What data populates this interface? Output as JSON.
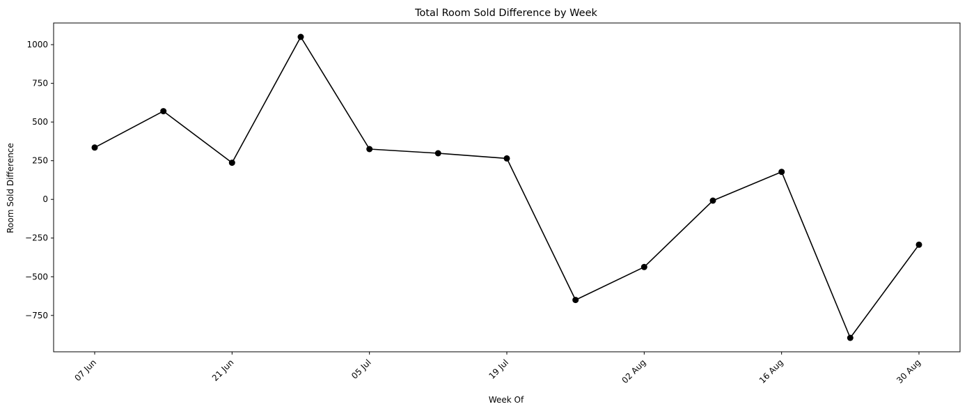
{
  "chart_data": {
    "type": "line",
    "title": "Total Room Sold Difference by Week",
    "xlabel": "Week Of",
    "ylabel": "Room Sold Difference",
    "x": [
      "2021-06-07",
      "2021-06-14",
      "2021-06-21",
      "2021-06-28",
      "2021-07-05",
      "2021-07-12",
      "2021-07-19",
      "2021-07-26",
      "2021-08-02",
      "2021-08-09",
      "2021-08-16",
      "2021-08-23",
      "2021-08-30"
    ],
    "x_tick_labels": [
      "07 Jun",
      "21 Jun",
      "05 Jul",
      "19 Jul",
      "02 Aug",
      "16 Aug",
      "30 Aug"
    ],
    "x_tick_dates": [
      "2021-06-07",
      "2021-06-21",
      "2021-07-05",
      "2021-07-19",
      "2021-08-02",
      "2021-08-16",
      "2021-08-30"
    ],
    "series": [
      {
        "values": [
          335,
          570,
          237,
          1050,
          325,
          298,
          265,
          -650,
          -437,
          -8,
          178,
          -895,
          -293
        ],
        "color": "#000000",
        "marker": "circle"
      }
    ],
    "y_ticks": [
      -750,
      -500,
      -250,
      0,
      250,
      500,
      750,
      1000
    ],
    "y_tick_labels": [
      "−750",
      "−500",
      "−250",
      "0",
      "250",
      "500",
      "750",
      "1000"
    ],
    "ylim": [
      -985,
      1140
    ],
    "grid": false,
    "legend": "none"
  }
}
